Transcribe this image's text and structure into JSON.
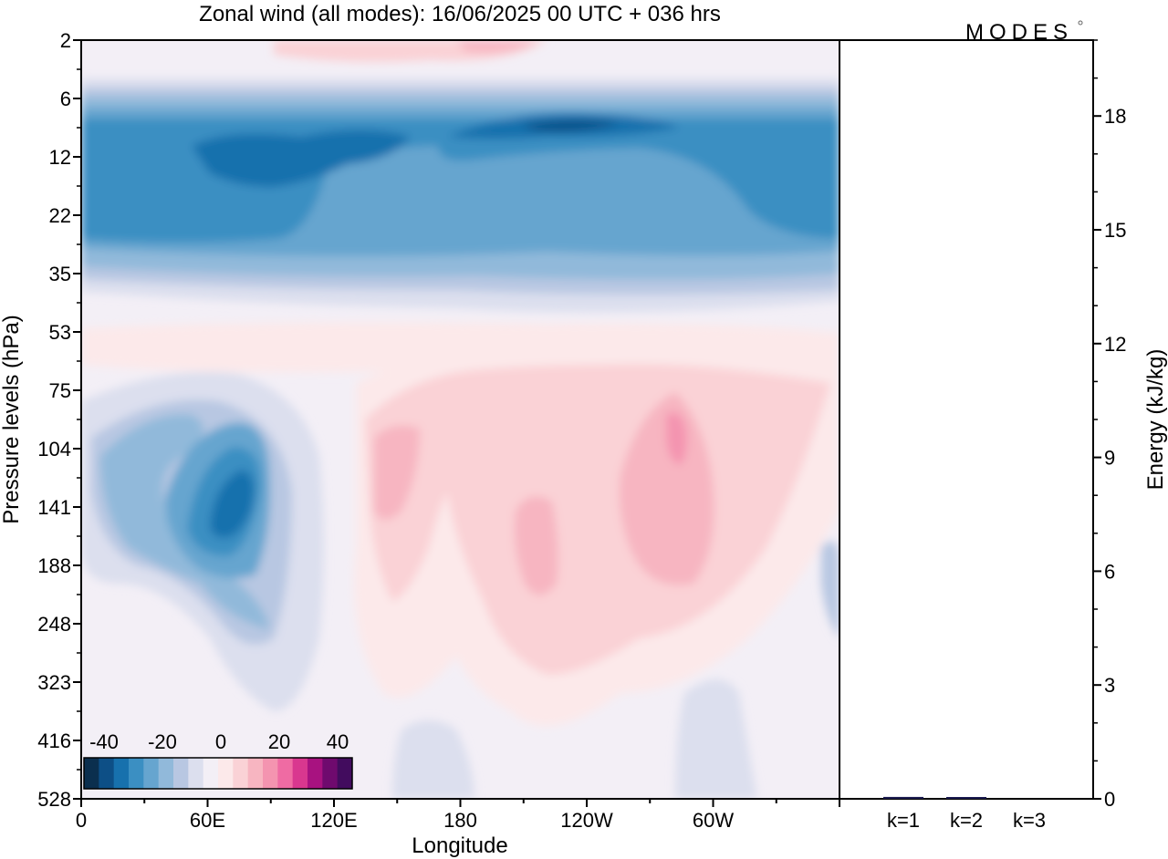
{
  "title": "Zonal wind (all modes):  16/06/2025  00 UTC  + 036 hrs",
  "logo_text": "MODES",
  "chart_data": [
    {
      "type": "heatmap",
      "field": "zonal wind",
      "xlabel": "Longitude",
      "ylabel": "Pressure levels (hPa)",
      "x_ticks": [
        {
          "label": "0",
          "lon": 0
        },
        {
          "label": "60E",
          "lon": 60
        },
        {
          "label": "120E",
          "lon": 120
        },
        {
          "label": "180",
          "lon": 180
        },
        {
          "label": "120W",
          "lon": 240
        },
        {
          "label": "60W",
          "lon": 300
        }
      ],
      "xlim": [
        0,
        360
      ],
      "y_ticks": [
        "2",
        "6",
        "12",
        "22",
        "35",
        "53",
        "75",
        "104",
        "141",
        "188",
        "248",
        "323",
        "416",
        "528"
      ],
      "colorbar": {
        "tick_labels": [
          "-40",
          "-20",
          "0",
          "20",
          "40"
        ],
        "range": [
          -40,
          40
        ],
        "step": 5,
        "colors": [
          "#0b2f4e",
          "#0d4f86",
          "#1771ad",
          "#3b8fc2",
          "#66a5cf",
          "#91b9da",
          "#b8c7e2",
          "#dcdfee",
          "#f3eff6",
          "#fce9ea",
          "#fad2d6",
          "#f7b5c1",
          "#f494b0",
          "#ef6ba3",
          "#d9378f",
          "#a81280",
          "#6f0a6e",
          "#420c5e"
        ]
      },
      "features": [
        {
          "description_level": "6-35",
          "lon": [
            0,
            360
          ],
          "u_min": -35,
          "sign": "easterly"
        },
        {
          "description_level": "2",
          "lon": [
            100,
            230
          ],
          "u_max": 15,
          "sign": "westerly"
        },
        {
          "description_level": "104-188",
          "lon": [
            55,
            95
          ],
          "u_min": -30,
          "sign": "easterly"
        },
        {
          "description_level": "75-248",
          "lon": [
            140,
            320
          ],
          "u_max": 20,
          "sign": "westerly"
        }
      ]
    },
    {
      "type": "bar",
      "ylabel": "Energy (kJ/kg)",
      "categories": [
        "k=1",
        "k=2",
        "k=3"
      ],
      "values": [
        0.05,
        0.03,
        0.0
      ],
      "ylim": [
        0,
        20
      ],
      "y_ticks": [
        0,
        3,
        6,
        9,
        12,
        15,
        18
      ],
      "bar_color": "#1a1a4e"
    }
  ]
}
